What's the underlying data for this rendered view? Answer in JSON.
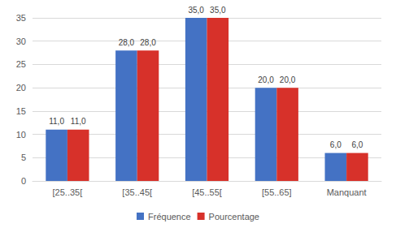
{
  "chart_data": {
    "type": "bar",
    "categories": [
      "[25..35[",
      "[35..45[",
      "[45..55[",
      "[55..65]",
      "Manquant"
    ],
    "series": [
      {
        "name": "Fréquence",
        "color": "#4472c4",
        "values": [
          11,
          28,
          35,
          20,
          6
        ],
        "value_labels": [
          "11,0",
          "28,0",
          "35,0",
          "20,0",
          "6,0"
        ]
      },
      {
        "name": "Pourcentage",
        "color": "#d7312a",
        "values": [
          11,
          28,
          35,
          20,
          6
        ],
        "value_labels": [
          "11,0",
          "28,0",
          "35,0",
          "20,0",
          "6,0"
        ]
      }
    ],
    "ylim": [
      0,
      35
    ],
    "yticks": [
      0,
      5,
      10,
      15,
      20,
      25,
      30,
      35
    ],
    "grid": true,
    "legend": "bottom",
    "data_labels": true
  }
}
